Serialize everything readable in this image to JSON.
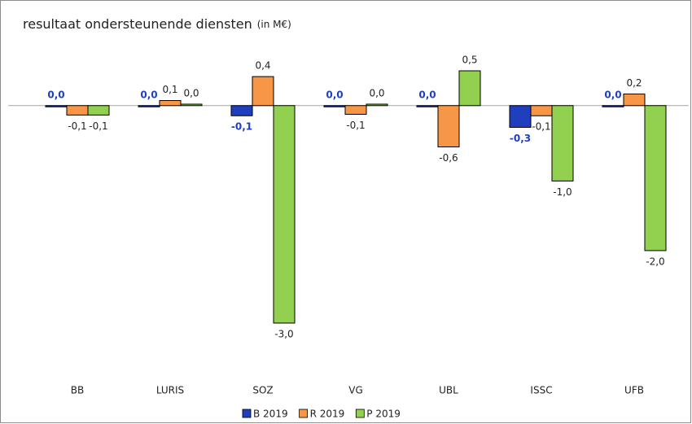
{
  "chart_data": {
    "type": "bar",
    "title": "resultaat ondersteunende diensten",
    "title_unit": "(in M€)",
    "categories": [
      "BB",
      "LURIS",
      "SOZ",
      "VG",
      "UBL",
      "ISSC",
      "UFB"
    ],
    "series": [
      {
        "name": "B 2019",
        "color": "#1f3fbf",
        "values": [
          0,
          0,
          -0.14,
          0,
          0,
          -0.3,
          0
        ],
        "value_labels": [
          "0,0",
          "0,0",
          "-0,1",
          "0,0",
          "0,0",
          "-0,3",
          "0,0"
        ]
      },
      {
        "name": "R 2019",
        "color": "#f79646",
        "values": [
          -0.13,
          0.07,
          0.4,
          -0.12,
          -0.57,
          -0.14,
          0.16
        ],
        "value_labels": [
          "-0,1",
          "0,1",
          "0,4",
          "-0,1",
          "-0,6",
          "-0,1",
          "0,2"
        ]
      },
      {
        "name": "P 2019",
        "color": "#92d050",
        "values": [
          -0.13,
          0.02,
          -3.0,
          0.02,
          0.48,
          -1.04,
          -2.0
        ],
        "value_labels": [
          "-0,1",
          "0,0",
          "-3,0",
          "0,0",
          "0,5",
          "-1,0",
          "-2,0"
        ]
      }
    ],
    "legend": "bottom"
  }
}
